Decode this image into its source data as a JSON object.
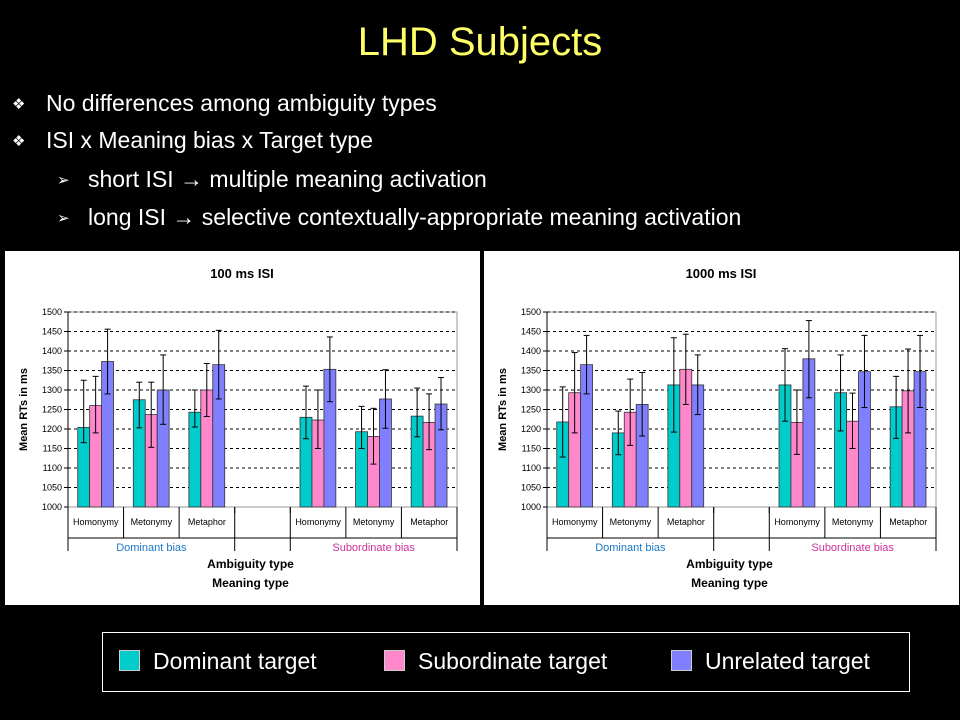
{
  "slide": {
    "title": "LHD Subjects",
    "bullets": [
      {
        "text": "No differences among ambiguity types",
        "marker": "❖"
      },
      {
        "text": "ISI x Meaning bias x Target type",
        "marker": "❖"
      },
      {
        "text": "short ISI → multiple meaning activation",
        "marker": "➢"
      },
      {
        "text": "long ISI → selective contextually-appropriate meaning activation",
        "marker": "➢"
      }
    ]
  },
  "legend": [
    {
      "label": "Dominant target",
      "color": "#00cccc"
    },
    {
      "label": "Subordinate target",
      "color": "#ff88cc"
    },
    {
      "label": "Unrelated target",
      "color": "#8080ff"
    }
  ],
  "colors": {
    "dominant": "#00cccc",
    "subordinate": "#ff88cc",
    "unrelated": "#8080ff",
    "dominant_bias_label": "#1a78c8",
    "subordinate_bias_label": "#cc3399"
  },
  "chart_data": [
    {
      "type": "bar",
      "title": "100 ms ISI",
      "ylabel": "Mean RTs in ms",
      "xlabel": [
        "Ambiguity type",
        "Meaning type"
      ],
      "ylim": [
        1000,
        1500
      ],
      "yticks": [
        "1000",
        "1050",
        "1100",
        "1150",
        "1200",
        "1250",
        "1300",
        "1350",
        "1400",
        "1450",
        "1500"
      ],
      "grid": true,
      "groups": [
        "Dominant bias",
        "Subordinate bias"
      ],
      "categories": [
        "Homonymy",
        "Metonymy",
        "Metaphor",
        "Homonymy",
        "Metonymy",
        "Metaphor"
      ],
      "series": [
        {
          "name": "Dominant target",
          "values": [
            1204,
            1275,
            1243,
            1230,
            1193,
            1233
          ],
          "error": [
            1165,
            1325,
            1203,
            1320,
            1205,
            1300,
            1175,
            1310,
            1150,
            1258,
            1180,
            1305
          ]
        },
        {
          "name": "Subordinate target",
          "values": [
            1260,
            1237,
            1300,
            1223,
            1181,
            1217
          ],
          "error": [
            1190,
            1335,
            1153,
            1320,
            1232,
            1368,
            1150,
            1300,
            1110,
            1253,
            1147,
            1290
          ]
        },
        {
          "name": "Unrelated target",
          "values": [
            1373,
            1300,
            1365,
            1353,
            1277,
            1264
          ],
          "error": [
            1290,
            1456,
            1212,
            1390,
            1277,
            1453,
            1270,
            1436,
            1202,
            1352,
            1198,
            1332
          ]
        }
      ]
    },
    {
      "type": "bar",
      "title": "1000 ms ISI",
      "ylabel": "Mean RTs in ms",
      "xlabel": [
        "Ambiguity type",
        "Meaning type"
      ],
      "ylim": [
        1000,
        1500
      ],
      "yticks": [
        "1000",
        "1050",
        "1100",
        "1150",
        "1200",
        "1250",
        "1300",
        "1350",
        "1400",
        "1450",
        "1500"
      ],
      "grid": true,
      "groups": [
        "Dominant bias",
        "Subordinate bias"
      ],
      "categories": [
        "Homonymy",
        "Metonymy",
        "Metaphor",
        "Homonymy",
        "Metonymy",
        "Metaphor"
      ],
      "series": [
        {
          "name": "Dominant target",
          "values": [
            1218,
            1190,
            1313,
            1313,
            1293,
            1257
          ],
          "error": [
            1128,
            1308,
            1134,
            1246,
            1192,
            1434,
            1220,
            1406,
            1195,
            1390,
            1176,
            1335
          ]
        },
        {
          "name": "Subordinate target",
          "values": [
            1293,
            1243,
            1353,
            1217,
            1220,
            1298
          ],
          "error": [
            1190,
            1396,
            1158,
            1328,
            1263,
            1443,
            1135,
            1300,
            1150,
            1292,
            1190,
            1405
          ]
        },
        {
          "name": "Unrelated target",
          "values": [
            1365,
            1263,
            1313,
            1380,
            1347,
            1347
          ],
          "error": [
            1290,
            1440,
            1182,
            1345,
            1237,
            1390,
            1280,
            1478,
            1255,
            1440,
            1255,
            1440
          ]
        }
      ]
    }
  ]
}
